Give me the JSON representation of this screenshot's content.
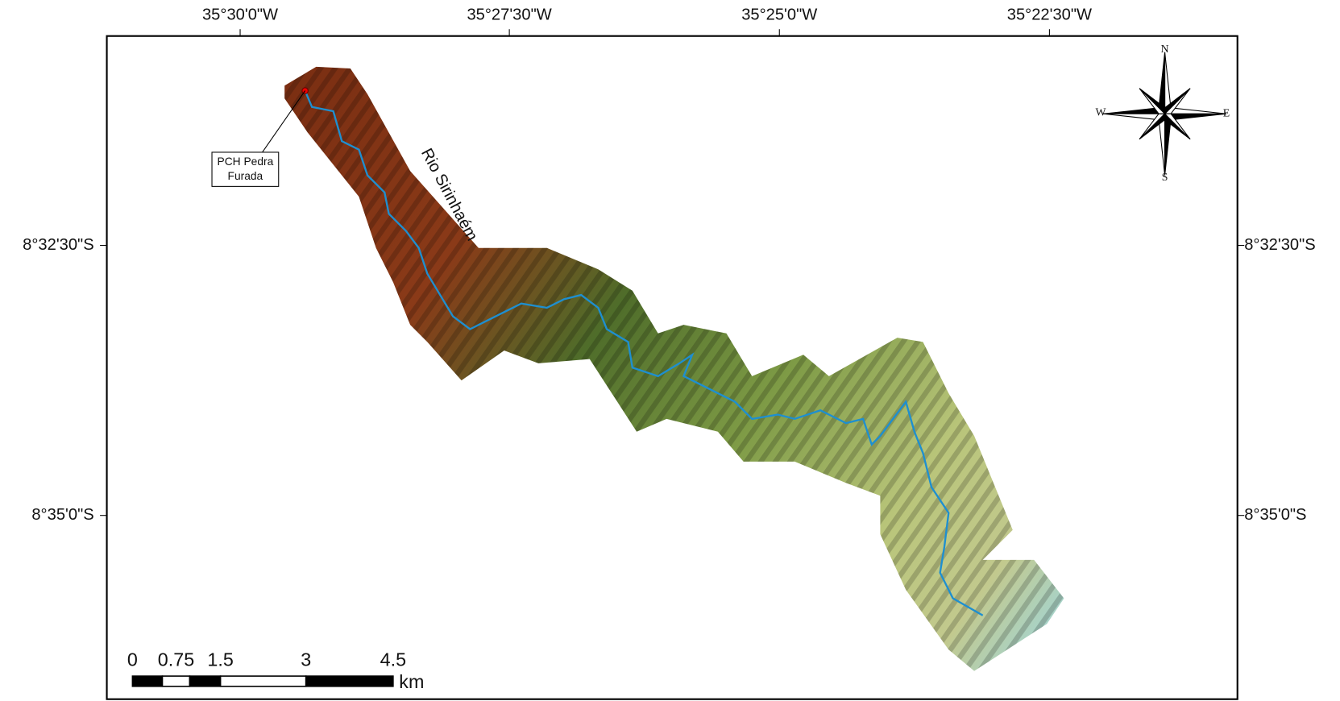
{
  "map": {
    "lon_labels": [
      "35°30'0\"W",
      "35°27'30\"W",
      "35°25'0\"W",
      "35°22'30\"W"
    ],
    "lat_labels": [
      "8°32'30\"S",
      "8°35'0\"S"
    ],
    "annotation": "PCH Pedra Furada",
    "river": "Rio Sirinhaém",
    "compass": {
      "n": "N",
      "s": "S",
      "e": "E",
      "w": "W"
    },
    "scale": {
      "labels": [
        "0",
        "0.75",
        "1.5",
        "3",
        "4.5"
      ],
      "unit": "km"
    }
  }
}
